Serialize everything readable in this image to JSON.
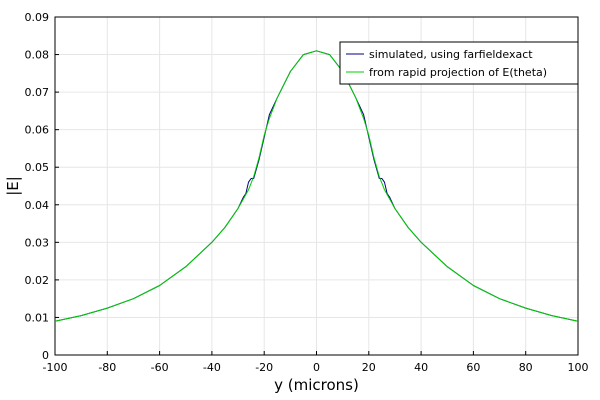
{
  "chart_data": {
    "type": "line",
    "title": "",
    "xlabel": "y (microns)",
    "ylabel": "|E|",
    "xlim": [
      -100,
      100
    ],
    "ylim": [
      0,
      0.09
    ],
    "x_ticks": [
      -100,
      -80,
      -60,
      -40,
      -20,
      0,
      20,
      40,
      60,
      80,
      100
    ],
    "y_ticks": [
      0,
      0.01,
      0.02,
      0.03,
      0.04,
      0.05,
      0.06,
      0.07,
      0.08,
      0.09
    ],
    "x_tick_labels": [
      "-100",
      "-80",
      "-60",
      "-40",
      "-20",
      "0",
      "20",
      "40",
      "60",
      "80",
      "100"
    ],
    "y_tick_labels": [
      "0",
      "0.01",
      "0.02",
      "0.03",
      "0.04",
      "0.05",
      "0.06",
      "0.07",
      "0.08",
      "0.09"
    ],
    "grid": true,
    "legend_position": "top-right",
    "series": [
      {
        "name": "simulated, using farfieldexact",
        "color": "#000080",
        "x": [
          -100,
          -90,
          -80,
          -70,
          -60,
          -50,
          -40,
          -35,
          -30,
          -28,
          -27,
          -26,
          -25,
          -24,
          -22,
          -20,
          -18,
          -15,
          -10,
          -5,
          0,
          5,
          10,
          15,
          18,
          20,
          22,
          24,
          25,
          26,
          27,
          28,
          30,
          35,
          40,
          50,
          60,
          70,
          80,
          90,
          100
        ],
        "y": [
          0.009,
          0.0105,
          0.0125,
          0.015,
          0.0185,
          0.0235,
          0.03,
          0.034,
          0.039,
          0.042,
          0.043,
          0.046,
          0.047,
          0.047,
          0.052,
          0.058,
          0.064,
          0.0685,
          0.0755,
          0.08,
          0.081,
          0.08,
          0.0755,
          0.0685,
          0.064,
          0.058,
          0.052,
          0.047,
          0.047,
          0.046,
          0.043,
          0.042,
          0.039,
          0.034,
          0.03,
          0.0235,
          0.0185,
          0.015,
          0.0125,
          0.0105,
          0.009
        ]
      },
      {
        "name": "from rapid projection of E(theta)",
        "color": "#00cc00",
        "x": [
          -100,
          -90,
          -80,
          -70,
          -60,
          -50,
          -40,
          -35,
          -30,
          -28,
          -26,
          -24,
          -22,
          -20,
          -18,
          -15,
          -10,
          -5,
          0,
          5,
          10,
          15,
          18,
          20,
          22,
          24,
          26,
          28,
          30,
          35,
          40,
          50,
          60,
          70,
          80,
          90,
          100
        ],
        "y": [
          0.009,
          0.0105,
          0.0125,
          0.015,
          0.0185,
          0.0235,
          0.03,
          0.034,
          0.039,
          0.0415,
          0.044,
          0.0475,
          0.0525,
          0.0585,
          0.063,
          0.0685,
          0.0755,
          0.08,
          0.081,
          0.08,
          0.0755,
          0.0685,
          0.063,
          0.0585,
          0.0525,
          0.0475,
          0.044,
          0.0415,
          0.039,
          0.034,
          0.03,
          0.0235,
          0.0185,
          0.015,
          0.0125,
          0.0105,
          0.009
        ]
      }
    ]
  }
}
